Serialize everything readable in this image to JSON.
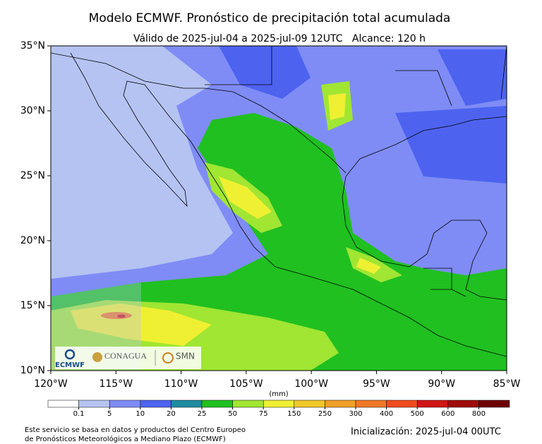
{
  "title": "Modelo ECMWF. Pronóstico de precipitación total acumulada",
  "subtitle": "Válido de 2025-jul-04 a 2025-jul-09 12UTC   Alcance: 120 h",
  "map": {
    "lon_range": [
      -120,
      -85
    ],
    "lat_range": [
      10,
      35
    ],
    "lat_ticks": [
      {
        "value": 35,
        "label": "35°N"
      },
      {
        "value": 30,
        "label": "30°N"
      },
      {
        "value": 25,
        "label": "25°N"
      },
      {
        "value": 20,
        "label": "20°N"
      },
      {
        "value": 15,
        "label": "15°N"
      },
      {
        "value": 10,
        "label": "10°N"
      }
    ],
    "lon_ticks": [
      {
        "value": -120,
        "label": "120°W"
      },
      {
        "value": -115,
        "label": "115°W"
      },
      {
        "value": -110,
        "label": "110°W"
      },
      {
        "value": -105,
        "label": "105°W"
      },
      {
        "value": -100,
        "label": "100°W"
      },
      {
        "value": -95,
        "label": "95°W"
      },
      {
        "value": -90,
        "label": "90°W"
      },
      {
        "value": -85,
        "label": "85°W"
      }
    ]
  },
  "colorbar": {
    "unit": "(mm)",
    "levels": [
      0.1,
      5,
      10,
      20,
      25,
      50,
      75,
      150,
      250,
      300,
      400,
      500,
      600,
      800
    ],
    "colors": [
      "#ffffff",
      "#b4c3f2",
      "#7f8cf5",
      "#4d63f0",
      "#1e8ca0",
      "#20c020",
      "#a0e632",
      "#f0f032",
      "#f0c828",
      "#f0a028",
      "#f07828",
      "#f04b1e",
      "#d21414",
      "#a00a0a",
      "#6e0000"
    ]
  },
  "logos": {
    "ecmwf": "ECMWF",
    "conagua": "CONAGUA",
    "smn": "SMN"
  },
  "footer": {
    "source": [
      "Este servicio se basa en datos y productos del Centro Europeo",
      "de Pronósticos Meteorológicos a Mediano Plazo (ECMWF)"
    ],
    "init": "Inicialización: 2025-jul-04 00UTC"
  }
}
